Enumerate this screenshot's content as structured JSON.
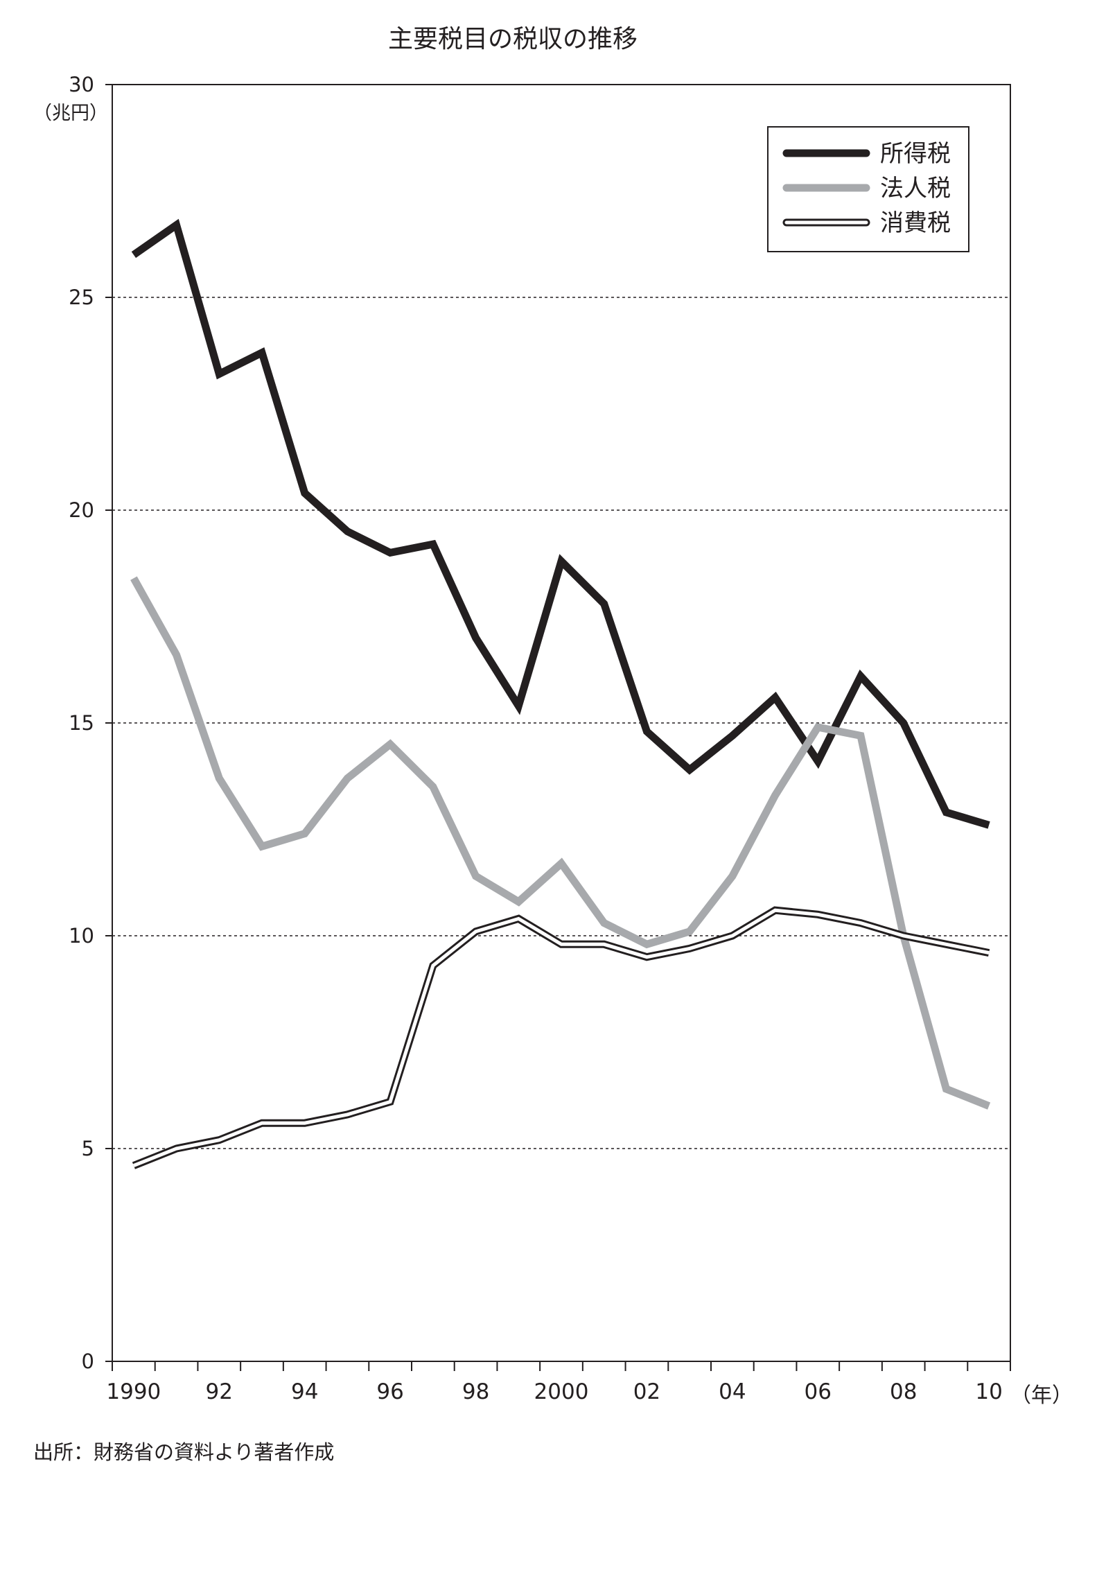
{
  "source_note": "出所：財務省の資料より著者作成",
  "chart_data": {
    "type": "line",
    "title": "主要税目の税収の推移",
    "ylabel_unit": "（兆円）",
    "xlabel_unit": "（年）",
    "ylim": [
      0,
      30
    ],
    "yticks": [
      0,
      5,
      10,
      15,
      20,
      25,
      30
    ],
    "ytick_labels": [
      "0",
      "5",
      "10",
      "15",
      "20",
      "25",
      "30"
    ],
    "grid": "horizontal dashed at 5, 10, 15, 20, 25",
    "xlim": [
      1989.5,
      2010.5
    ],
    "x": [
      1990,
      1991,
      1992,
      1993,
      1994,
      1995,
      1996,
      1997,
      1998,
      1999,
      2000,
      2001,
      2002,
      2003,
      2004,
      2005,
      2006,
      2007,
      2008,
      2009,
      2010
    ],
    "xtick_positions": [
      1990,
      1992,
      1994,
      1996,
      1998,
      2000,
      2002,
      2004,
      2006,
      2008,
      2010
    ],
    "xtick_labels": [
      "1990",
      "92",
      "94",
      "96",
      "98",
      "2000",
      "02",
      "04",
      "06",
      "08",
      "10"
    ],
    "legend_position": "top-right",
    "series": [
      {
        "name": "所得税",
        "style": "thick-black",
        "color": "#231f20",
        "values": [
          26.0,
          26.7,
          23.2,
          23.7,
          20.4,
          19.5,
          19.0,
          19.2,
          17.0,
          15.4,
          18.8,
          17.8,
          14.8,
          13.9,
          14.7,
          15.6,
          14.1,
          16.1,
          15.0,
          12.9,
          12.6
        ]
      },
      {
        "name": "法人税",
        "style": "thick-gray",
        "color": "#a7a9ac",
        "values": [
          18.4,
          16.6,
          13.7,
          12.1,
          12.4,
          13.7,
          14.5,
          13.5,
          11.4,
          10.8,
          11.7,
          10.3,
          9.8,
          10.1,
          11.4,
          13.3,
          14.9,
          14.7,
          10.0,
          6.4,
          6.0
        ]
      },
      {
        "name": "消費税",
        "style": "double-outline",
        "color": "#231f20",
        "values": [
          4.6,
          5.0,
          5.2,
          5.6,
          5.6,
          5.8,
          6.1,
          9.3,
          10.1,
          10.4,
          9.8,
          9.8,
          9.5,
          9.7,
          10.0,
          10.6,
          10.5,
          10.3,
          10.0,
          9.8,
          9.6
        ]
      }
    ]
  }
}
